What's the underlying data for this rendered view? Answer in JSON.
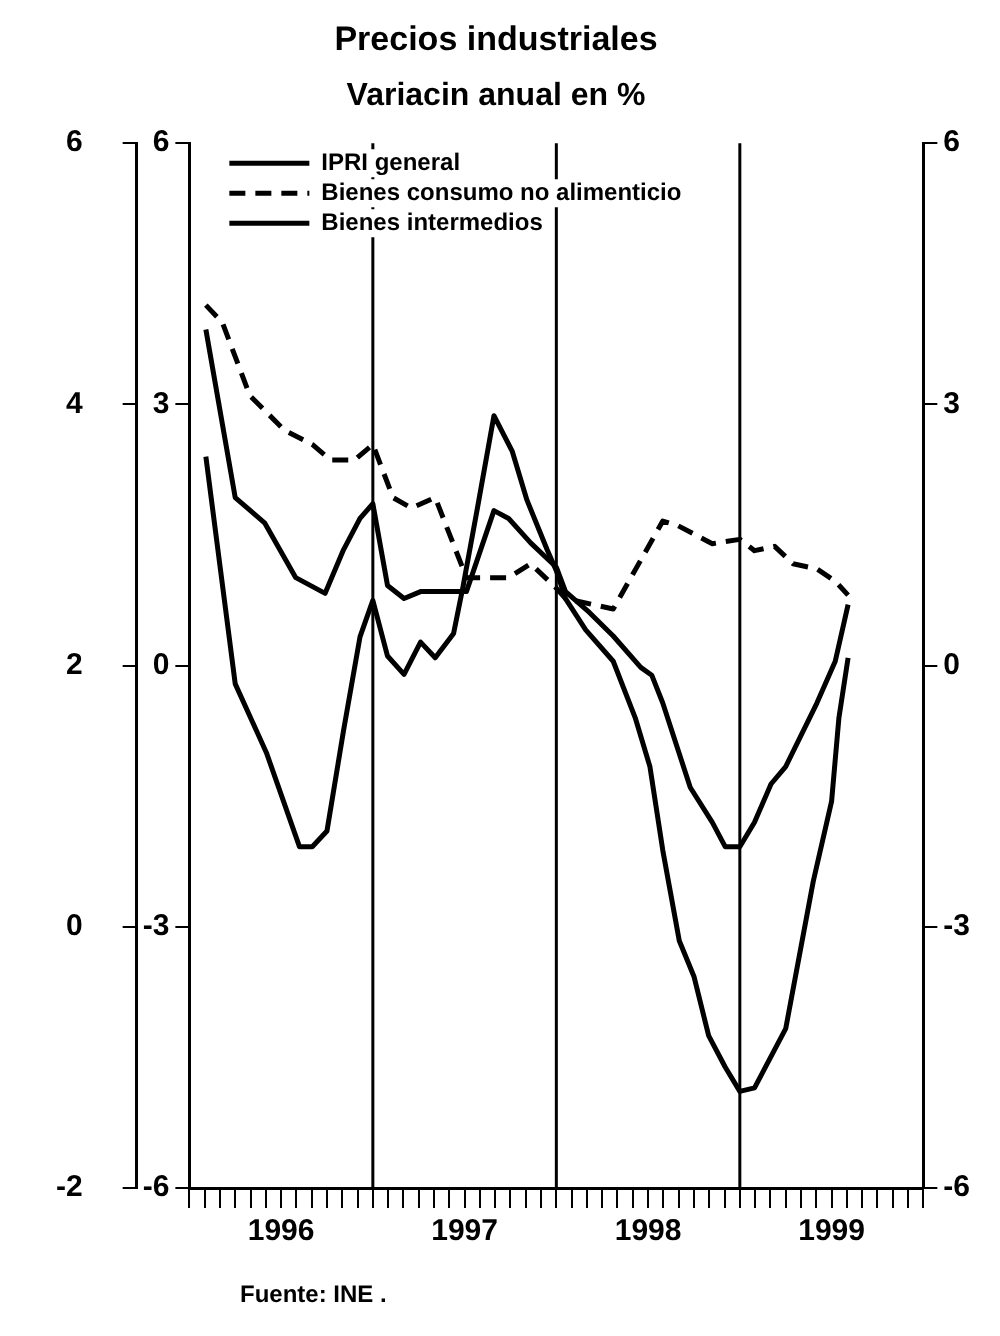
{
  "chart_data": {
    "type": "line",
    "title": "Precios industriales",
    "subtitle": "Variacin anual en %",
    "annotations": [
      "Fuente: INE  ."
    ],
    "xlim": [
      1996,
      2000
    ],
    "xticks": [
      {
        "value": 1996,
        "label": null
      },
      {
        "value": 1996.0833,
        "label": null
      },
      {
        "value": 1996.1667,
        "label": null
      },
      {
        "value": 1996.25,
        "label": null
      },
      {
        "value": 1996.3333,
        "label": null
      },
      {
        "value": 1996.4167,
        "label": null
      },
      {
        "value": 1996.5,
        "label": "1996"
      },
      {
        "value": 1996.5833,
        "label": null
      },
      {
        "value": 1996.6667,
        "label": null
      },
      {
        "value": 1996.75,
        "label": null
      },
      {
        "value": 1996.8333,
        "label": null
      },
      {
        "value": 1996.9167,
        "label": null
      },
      {
        "value": 1997,
        "label": null
      },
      {
        "value": 1997.0833,
        "label": null
      },
      {
        "value": 1997.1667,
        "label": null
      },
      {
        "value": 1997.25,
        "label": null
      },
      {
        "value": 1997.3333,
        "label": null
      },
      {
        "value": 1997.4167,
        "label": null
      },
      {
        "value": 1997.5,
        "label": "1997"
      },
      {
        "value": 1997.5833,
        "label": null
      },
      {
        "value": 1997.6667,
        "label": null
      },
      {
        "value": 1997.75,
        "label": null
      },
      {
        "value": 1997.8333,
        "label": null
      },
      {
        "value": 1997.9167,
        "label": null
      },
      {
        "value": 1998,
        "label": null
      },
      {
        "value": 1998.0833,
        "label": null
      },
      {
        "value": 1998.1667,
        "label": null
      },
      {
        "value": 1998.25,
        "label": null
      },
      {
        "value": 1998.3333,
        "label": null
      },
      {
        "value": 1998.4167,
        "label": null
      },
      {
        "value": 1998.5,
        "label": "1998"
      },
      {
        "value": 1998.5833,
        "label": null
      },
      {
        "value": 1998.6667,
        "label": null
      },
      {
        "value": 1998.75,
        "label": null
      },
      {
        "value": 1998.8333,
        "label": null
      },
      {
        "value": 1998.9167,
        "label": null
      },
      {
        "value": 1999,
        "label": null
      },
      {
        "value": 1999.0833,
        "label": null
      },
      {
        "value": 1999.1667,
        "label": null
      },
      {
        "value": 1999.25,
        "label": null
      },
      {
        "value": 1999.3333,
        "label": null
      },
      {
        "value": 1999.4167,
        "label": null
      },
      {
        "value": 1999.5,
        "label": "1999"
      },
      {
        "value": 1999.5833,
        "label": null
      },
      {
        "value": 1999.6667,
        "label": null
      },
      {
        "value": 1999.75,
        "label": null
      },
      {
        "value": 1999.8333,
        "label": null
      },
      {
        "value": 1999.9167,
        "label": null
      },
      {
        "value": 2000,
        "label": null
      }
    ],
    "ylim": [
      -6,
      6
    ],
    "yticks": [
      -6,
      -3,
      0,
      3,
      6
    ],
    "y2lim": [
      -2,
      6
    ],
    "y2ticks": [
      -2,
      0,
      2,
      4,
      6
    ],
    "y3lim": [
      -6,
      6
    ],
    "y3ticks": [
      -6,
      -3,
      0,
      3,
      6
    ],
    "ref_lines": [
      {
        "axis": "x",
        "value": 1997,
        "color": "#000000"
      },
      {
        "axis": "x",
        "value": 1998,
        "color": "#000000"
      },
      {
        "axis": "x",
        "value": 1999,
        "color": "#000000"
      }
    ],
    "legend": "top",
    "grid": false,
    "marker": "none",
    "series": [
      {
        "name": "IPRI general",
        "color": "#000000",
        "line_style": "solid",
        "x": [
          1996.09,
          1996.25,
          1996.41,
          1996.58,
          1996.74,
          1996.84,
          1996.93,
          1997.0,
          1997.08,
          1997.17,
          1997.26,
          1997.51,
          1997.66,
          1997.74,
          1997.86,
          1998.0,
          1998.05,
          1998.18,
          1998.31,
          1998.46,
          1998.52,
          1998.58,
          1998.73,
          1998.85,
          1998.92,
          1999.0,
          1999.08,
          1999.17,
          1999.25,
          1999.42,
          1999.52,
          1999.59
        ],
        "values": [
          3.86,
          1.93,
          1.64,
          1.01,
          0.83,
          1.33,
          1.69,
          1.86,
          0.92,
          0.77,
          0.85,
          0.85,
          1.78,
          1.69,
          1.41,
          1.13,
          0.85,
          0.61,
          0.34,
          -0.02,
          -0.11,
          -0.43,
          -1.4,
          -1.8,
          -2.08,
          -2.08,
          -1.8,
          -1.36,
          -1.16,
          -0.43,
          0.05,
          0.7
        ]
      },
      {
        "name": "Bienes consumo no alimenticio",
        "color": "#000000",
        "line_style": "dashed",
        "x": [
          1996.09,
          1996.18,
          1996.33,
          1996.52,
          1996.67,
          1996.77,
          1996.9,
          1997.0,
          1997.11,
          1997.21,
          1997.34,
          1997.51,
          1997.74,
          1997.86,
          1998.0,
          1998.05,
          1998.31,
          1998.58,
          1998.66,
          1998.85,
          1999.0,
          1999.08,
          1999.19,
          1999.29,
          1999.42,
          1999.52,
          1999.59
        ],
        "values": [
          4.14,
          3.94,
          3.1,
          2.7,
          2.54,
          2.36,
          2.36,
          2.54,
          1.93,
          1.81,
          1.93,
          1.01,
          1.01,
          1.17,
          0.89,
          0.77,
          0.65,
          1.66,
          1.61,
          1.4,
          1.45,
          1.32,
          1.37,
          1.17,
          1.11,
          0.97,
          0.81
        ]
      },
      {
        "name": "Bienes intermedios",
        "color": "#000000",
        "line_style": "solid",
        "x": [
          1996.09,
          1996.25,
          1996.42,
          1996.6,
          1996.67,
          1996.75,
          1996.84,
          1996.93,
          1997.0,
          1997.08,
          1997.17,
          1997.26,
          1997.34,
          1997.44,
          1997.49,
          1997.57,
          1997.66,
          1997.76,
          1997.84,
          1997.95,
          1998.0,
          1998.05,
          1998.16,
          1998.31,
          1998.43,
          1998.51,
          1998.58,
          1998.67,
          1998.75,
          1998.83,
          1998.92,
          1999.0,
          1999.08,
          1999.25,
          1999.4,
          1999.5,
          1999.54,
          1999.59
        ],
        "values": [
          2.4,
          -0.21,
          -1.0,
          -2.08,
          -2.08,
          -1.9,
          -0.75,
          0.33,
          0.75,
          0.11,
          -0.1,
          0.27,
          0.09,
          0.37,
          0.89,
          1.81,
          2.87,
          2.46,
          1.9,
          1.33,
          1.09,
          0.77,
          0.41,
          0.05,
          -0.6,
          -1.16,
          -2.12,
          -3.16,
          -3.57,
          -4.25,
          -4.61,
          -4.89,
          -4.85,
          -4.17,
          -2.48,
          -1.56,
          -0.6,
          0.09
        ]
      }
    ]
  }
}
